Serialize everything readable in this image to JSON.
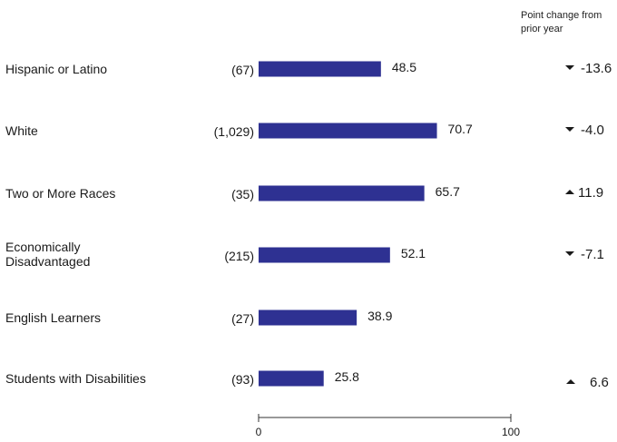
{
  "header_note": "Point change from prior year",
  "colors": {
    "bar": "#2e3192",
    "text": "#1a1a1a",
    "axis": "#333333"
  },
  "chart_data": {
    "type": "bar",
    "orientation": "horizontal",
    "categories": [
      "Hispanic or Latino",
      "White",
      "Two or More Races",
      "Economically Disadvantaged",
      "English Learners",
      "Students with Disabilities"
    ],
    "counts": [
      "(67)",
      "(1,029)",
      "(35)",
      "(215)",
      "(27)",
      "(93)"
    ],
    "values": [
      48.5,
      70.7,
      65.7,
      52.1,
      38.9,
      25.8
    ],
    "value_labels": [
      "48.5",
      "70.7",
      "65.7",
      "52.1",
      "38.9",
      "25.8"
    ],
    "changes": [
      {
        "direction": "down",
        "text": "-13.6"
      },
      {
        "direction": "down",
        "text": "-4.0"
      },
      {
        "direction": "up",
        "text": "11.9"
      },
      {
        "direction": "down",
        "text": "-7.1"
      },
      null,
      {
        "direction": "up",
        "text": "6.6"
      }
    ],
    "xlim": [
      0,
      100
    ],
    "x_ticks": [
      "0",
      "100"
    ],
    "grid": false
  }
}
